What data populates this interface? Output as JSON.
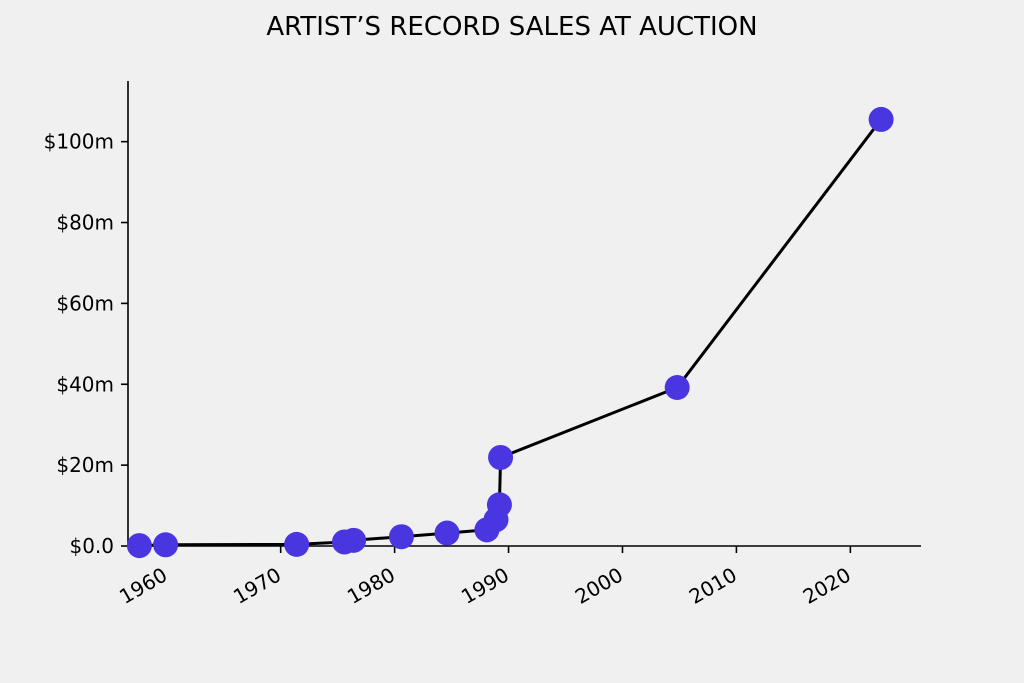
{
  "chart_data": {
    "type": "line",
    "title": "ARTIST’S RECORD SALES AT AUCTION",
    "xlabel": "",
    "ylabel": "",
    "xlim": [
      1956.6,
      2026.2
    ],
    "ylim": [
      0,
      115
    ],
    "x_ticks": [
      1960,
      1970,
      1980,
      1990,
      2000,
      2010,
      2020
    ],
    "x_tick_labels": [
      "1960",
      "1970",
      "1980",
      "1990",
      "2000",
      "2010",
      "2020"
    ],
    "y_ticks": [
      0,
      20,
      40,
      60,
      80,
      100
    ],
    "y_tick_labels": [
      "$0.0",
      "$20m",
      "$40m",
      "$60m",
      "$80m",
      "$100m"
    ],
    "grid": false,
    "legend": "none",
    "line_color": "#000000",
    "marker_color": "#4a36e0",
    "series": [
      {
        "x": [
          1957.6,
          1959.9,
          1971.4,
          1975.6,
          1976.4,
          1980.6,
          1984.6,
          1988.1,
          1988.9,
          1989.2,
          1989.3,
          2004.8,
          2022.7
        ],
        "y": [
          0.1,
          0.3,
          0.4,
          1.0,
          1.4,
          2.3,
          3.2,
          4.0,
          6.5,
          10.2,
          21.9,
          39.2,
          105.5
        ]
      }
    ]
  }
}
